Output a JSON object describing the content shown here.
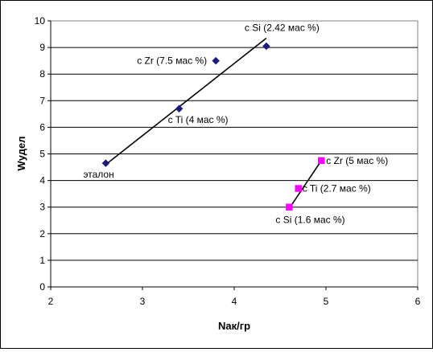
{
  "chart_data": {
    "type": "scatter",
    "title": "",
    "xlabel": "Nак/гр",
    "ylabel": "Wудел",
    "xlim": [
      2,
      6
    ],
    "ylim": [
      0,
      10
    ],
    "x_ticks": [
      "2",
      "3",
      "4",
      "5",
      "6"
    ],
    "y_ticks": [
      "0",
      "1",
      "2",
      "3",
      "4",
      "5",
      "6",
      "7",
      "8",
      "9",
      "10"
    ],
    "grid": "horizontal",
    "legend": "none",
    "series": [
      {
        "marker": "diamond",
        "color": "#1a1a7a",
        "points": [
          {
            "x": 2.6,
            "y": 4.65,
            "label": "эталон"
          },
          {
            "x": 3.4,
            "y": 6.7,
            "label": "c Ti (4 мас %)"
          },
          {
            "x": 3.8,
            "y": 8.5,
            "label": "c Zr (7.5 мас %)"
          },
          {
            "x": 4.35,
            "y": 9.05,
            "label": "c Si (2.42 мас %)"
          }
        ],
        "trendline": {
          "x": [
            2.6,
            4.35
          ],
          "y": [
            4.6,
            9.35
          ]
        }
      },
      {
        "marker": "square",
        "color": "#ff00ff",
        "points": [
          {
            "x": 4.6,
            "y": 3.0,
            "label": "c Si (1.6 мас %)"
          },
          {
            "x": 4.7,
            "y": 3.7,
            "label": "c Ti (2.7 мас %)"
          },
          {
            "x": 4.95,
            "y": 4.75,
            "label": "c Zr (5 мас %)"
          }
        ],
        "trendline": {
          "x": [
            4.6,
            4.95
          ],
          "y": [
            2.95,
            4.75
          ]
        }
      }
    ]
  }
}
